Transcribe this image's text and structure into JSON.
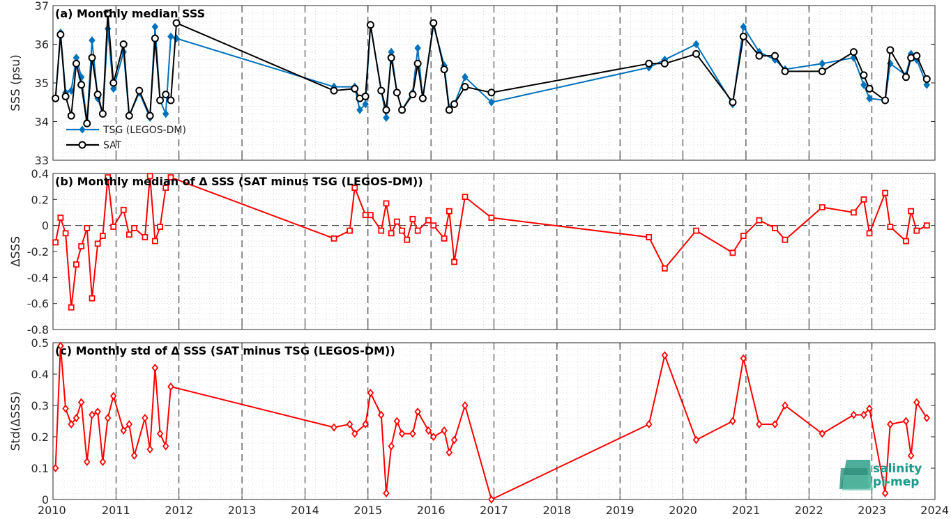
{
  "figure": {
    "xticks": [
      "2010",
      "2011",
      "2012",
      "2013",
      "2014",
      "2015",
      "2016",
      "2017",
      "2018",
      "2019",
      "2020",
      "2021",
      "2022",
      "2023",
      "2024"
    ],
    "logo": {
      "line1": "salinity",
      "line2": "pi-mep"
    }
  },
  "chart_data": [
    {
      "type": "line",
      "title": "(a) Monthly median SSS",
      "xlabel": "",
      "ylabel": "SSS (psu)",
      "xlim": [
        2010,
        2024
      ],
      "ylim": [
        33,
        37
      ],
      "yticks": [
        "33",
        "34",
        "35",
        "36",
        "37"
      ],
      "grid": true,
      "legend": "bottom-left",
      "series": [
        {
          "name": "TSG (LEGOS-DM)",
          "color": "#0072bd",
          "marker": "diamond",
          "x": [
            2010.04,
            2010.12,
            2010.2,
            2010.29,
            2010.37,
            2010.45,
            2010.54,
            2010.62,
            2010.71,
            2010.79,
            2010.87,
            2010.96,
            2011.12,
            2011.21,
            2011.37,
            2011.54,
            2011.62,
            2011.7,
            2011.79,
            2011.87,
            2011.96,
            2014.46,
            2014.79,
            2014.87,
            2014.96,
            2015.04,
            2015.21,
            2015.29,
            2015.37,
            2015.46,
            2015.54,
            2015.71,
            2015.79,
            2015.87,
            2016.04,
            2016.21,
            2016.29,
            2016.37,
            2016.54,
            2016.96,
            2019.46,
            2019.71,
            2020.21,
            2020.79,
            2020.96,
            2021.21,
            2021.46,
            2021.62,
            2022.21,
            2022.71,
            2022.87,
            2022.96,
            2023.21,
            2023.29,
            2023.54,
            2023.62,
            2023.71,
            2023.87
          ],
          "y": [
            34.6,
            36.3,
            34.75,
            34.8,
            35.65,
            35.15,
            34.0,
            36.1,
            34.6,
            34.2,
            36.4,
            34.85,
            35.8,
            34.15,
            34.75,
            34.1,
            36.45,
            34.55,
            34.2,
            36.2,
            36.15,
            34.9,
            34.9,
            34.3,
            34.45,
            36.5,
            34.8,
            34.1,
            35.8,
            34.75,
            34.3,
            34.75,
            35.9,
            34.6,
            36.5,
            35.45,
            34.35,
            34.45,
            35.15,
            34.5,
            35.4,
            35.6,
            36.0,
            34.45,
            36.45,
            35.8,
            35.6,
            35.35,
            35.5,
            35.65,
            34.95,
            34.6,
            34.55,
            35.5,
            35.2,
            35.75,
            35.6,
            34.95
          ]
        },
        {
          "name": "SAT",
          "color": "#000000",
          "marker": "circle",
          "x": [
            2010.04,
            2010.12,
            2010.2,
            2010.29,
            2010.37,
            2010.45,
            2010.54,
            2010.62,
            2010.71,
            2010.79,
            2010.87,
            2010.96,
            2011.12,
            2011.21,
            2011.37,
            2011.54,
            2011.62,
            2011.7,
            2011.79,
            2011.87,
            2011.96,
            2014.46,
            2014.79,
            2014.87,
            2014.96,
            2015.04,
            2015.21,
            2015.29,
            2015.37,
            2015.46,
            2015.54,
            2015.71,
            2015.79,
            2015.87,
            2016.04,
            2016.21,
            2016.29,
            2016.37,
            2016.54,
            2016.96,
            2019.46,
            2019.71,
            2020.21,
            2020.79,
            2020.96,
            2021.21,
            2021.46,
            2021.62,
            2022.21,
            2022.71,
            2022.87,
            2022.96,
            2023.21,
            2023.29,
            2023.54,
            2023.62,
            2023.71,
            2023.87
          ],
          "y": [
            34.6,
            36.25,
            34.65,
            34.15,
            35.5,
            34.95,
            33.95,
            35.65,
            34.7,
            34.2,
            36.8,
            35.0,
            36.0,
            34.15,
            34.8,
            34.15,
            36.15,
            34.55,
            34.7,
            34.55,
            36.55,
            34.8,
            34.85,
            34.6,
            34.65,
            36.5,
            34.8,
            34.3,
            35.65,
            34.75,
            34.3,
            34.7,
            35.5,
            34.6,
            36.55,
            35.35,
            34.3,
            34.45,
            34.9,
            34.75,
            35.5,
            35.5,
            35.75,
            34.5,
            36.2,
            35.7,
            35.7,
            35.3,
            35.3,
            35.8,
            35.2,
            34.85,
            34.55,
            35.85,
            35.15,
            35.65,
            35.7,
            35.1
          ]
        }
      ]
    },
    {
      "type": "line",
      "title": "(b) Monthly median of Δ SSS (SAT minus TSG (LEGOS-DM))",
      "xlabel": "",
      "ylabel": "ΔSSS",
      "xlim": [
        2010,
        2024
      ],
      "ylim": [
        -0.8,
        0.4
      ],
      "yticks": [
        "0.4",
        "0.2",
        "0",
        "-0.2",
        "-0.4",
        "-0.6",
        "-0.8"
      ],
      "grid": true,
      "zero_line": true,
      "series": [
        {
          "name": "",
          "color": "#ff0000",
          "marker": "square",
          "x": [
            2010.04,
            2010.12,
            2010.2,
            2010.29,
            2010.37,
            2010.45,
            2010.54,
            2010.62,
            2010.71,
            2010.79,
            2010.87,
            2010.96,
            2011.12,
            2011.21,
            2011.29,
            2011.46,
            2011.54,
            2011.62,
            2011.7,
            2011.79,
            2011.87,
            2014.46,
            2014.71,
            2014.79,
            2014.96,
            2015.04,
            2015.21,
            2015.29,
            2015.37,
            2015.46,
            2015.54,
            2015.62,
            2015.71,
            2015.79,
            2015.96,
            2016.04,
            2016.21,
            2016.29,
            2016.37,
            2016.54,
            2016.96,
            2019.46,
            2019.71,
            2020.21,
            2020.79,
            2020.96,
            2021.21,
            2021.46,
            2021.62,
            2022.21,
            2022.71,
            2022.87,
            2022.96,
            2023.21,
            2023.29,
            2023.54,
            2023.62,
            2023.71,
            2023.87
          ],
          "y": [
            -0.13,
            0.06,
            -0.06,
            -0.63,
            -0.3,
            -0.16,
            -0.02,
            -0.56,
            -0.14,
            -0.08,
            0.37,
            -0.01,
            0.12,
            -0.07,
            -0.02,
            -0.09,
            0.38,
            -0.12,
            -0.01,
            0.29,
            0.37,
            -0.1,
            -0.04,
            0.29,
            0.08,
            0.08,
            -0.04,
            0.17,
            -0.06,
            0.03,
            -0.04,
            -0.11,
            0.05,
            -0.04,
            0.04,
            0.0,
            -0.1,
            0.11,
            -0.28,
            0.22,
            0.06,
            -0.09,
            -0.33,
            -0.04,
            -0.21,
            -0.08,
            0.04,
            -0.02,
            -0.11,
            0.14,
            0.1,
            0.2,
            -0.06,
            0.25,
            -0.01,
            -0.12,
            0.11,
            -0.04,
            0.0
          ]
        }
      ]
    },
    {
      "type": "line",
      "title": "(c) Monthly std of Δ SSS (SAT minus TSG (LEGOS-DM))",
      "xlabel": "",
      "ylabel": "Std(ΔSSS)",
      "xlim": [
        2010,
        2024
      ],
      "ylim": [
        0,
        0.5
      ],
      "yticks": [
        "0",
        "0.1",
        "0.2",
        "0.3",
        "0.4",
        "0.5"
      ],
      "grid": true,
      "series": [
        {
          "name": "",
          "color": "#ff0000",
          "marker": "diamond",
          "x": [
            2010.04,
            2010.12,
            2010.2,
            2010.29,
            2010.37,
            2010.45,
            2010.54,
            2010.62,
            2010.71,
            2010.79,
            2010.87,
            2010.96,
            2011.12,
            2011.21,
            2011.29,
            2011.46,
            2011.54,
            2011.62,
            2011.7,
            2011.79,
            2011.87,
            2014.46,
            2014.71,
            2014.79,
            2014.96,
            2015.04,
            2015.21,
            2015.29,
            2015.37,
            2015.46,
            2015.54,
            2015.71,
            2015.79,
            2015.96,
            2016.04,
            2016.21,
            2016.29,
            2016.37,
            2016.54,
            2016.96,
            2019.46,
            2019.71,
            2020.21,
            2020.79,
            2020.96,
            2021.21,
            2021.46,
            2021.62,
            2022.21,
            2022.71,
            2022.87,
            2022.96,
            2023.21,
            2023.29,
            2023.54,
            2023.62,
            2023.71,
            2023.87
          ],
          "y": [
            0.1,
            0.49,
            0.29,
            0.24,
            0.26,
            0.31,
            0.12,
            0.27,
            0.28,
            0.12,
            0.26,
            0.33,
            0.22,
            0.24,
            0.14,
            0.26,
            0.16,
            0.42,
            0.21,
            0.17,
            0.36,
            0.23,
            0.24,
            0.21,
            0.24,
            0.34,
            0.27,
            0.02,
            0.17,
            0.25,
            0.21,
            0.21,
            0.28,
            0.22,
            0.2,
            0.22,
            0.15,
            0.19,
            0.3,
            0.0,
            0.24,
            0.46,
            0.19,
            0.25,
            0.45,
            0.24,
            0.24,
            0.3,
            0.21,
            0.27,
            0.27,
            0.29,
            0.02,
            0.24,
            0.25,
            0.14,
            0.31,
            0.26
          ]
        }
      ]
    }
  ]
}
